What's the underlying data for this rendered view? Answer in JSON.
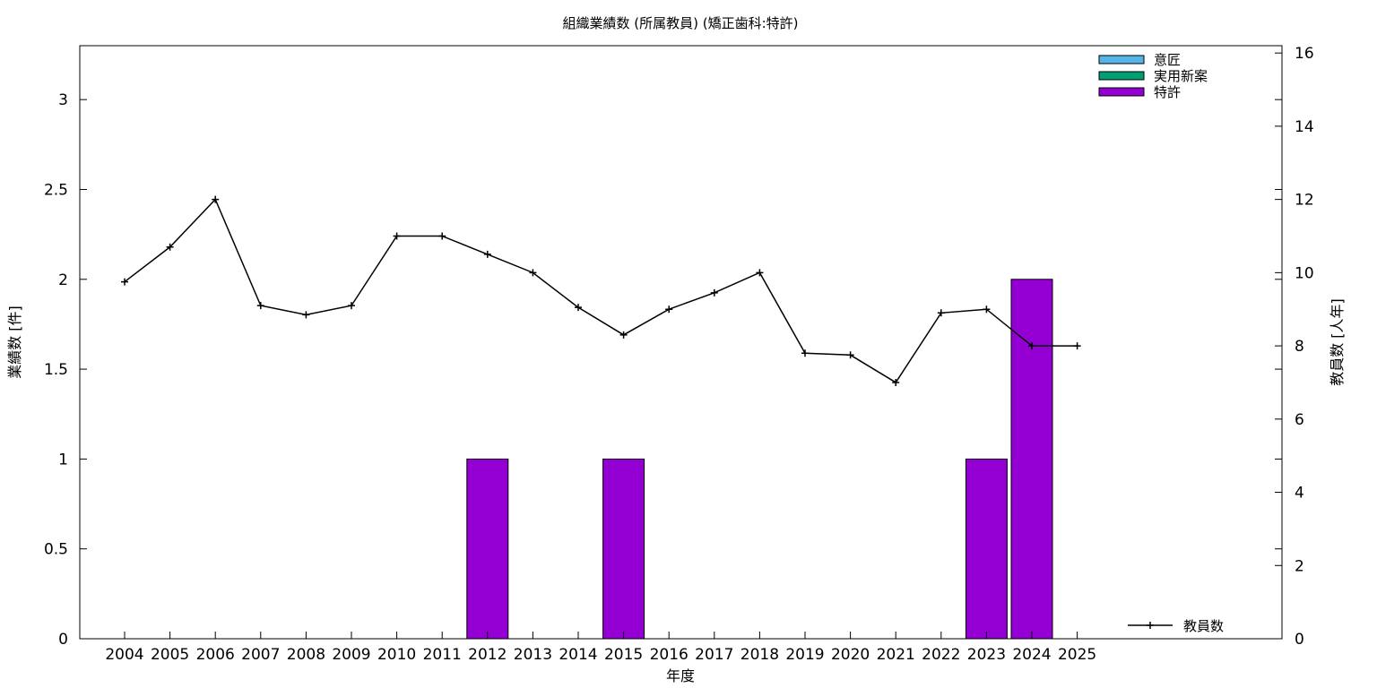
{
  "chart_data": {
    "type": "bar",
    "title": "組織業績数 (所属教員) (矯正歯科:特許)",
    "xlabel": "年度",
    "ylabel": "業績数 [件]",
    "y2label": "教員数 [人年]",
    "categories": [
      "2004",
      "2005",
      "2006",
      "2007",
      "2008",
      "2009",
      "2010",
      "2011",
      "2012",
      "2013",
      "2014",
      "2015",
      "2016",
      "2017",
      "2018",
      "2019",
      "2020",
      "2021",
      "2022",
      "2023",
      "2024",
      "2025"
    ],
    "ylim": [
      0,
      3.3
    ],
    "yticks": [
      "0",
      "0.5",
      "1",
      "1.5",
      "2",
      "2.5",
      "3"
    ],
    "y2lim": [
      0,
      16.2
    ],
    "y2ticks": [
      "0",
      "2",
      "4",
      "6",
      "8",
      "10",
      "12",
      "14",
      "16"
    ],
    "grid": false,
    "legend_position": "top-right",
    "series": [
      {
        "name": "意匠",
        "kind": "bar",
        "color": "#56b4e9",
        "values": [
          0,
          0,
          0,
          0,
          0,
          0,
          0,
          0,
          0,
          0,
          0,
          0,
          0,
          0,
          0,
          0,
          0,
          0,
          0,
          0,
          0,
          0
        ]
      },
      {
        "name": "実用新案",
        "kind": "bar",
        "color": "#009e73",
        "values": [
          0,
          0,
          0,
          0,
          0,
          0,
          0,
          0,
          0,
          0,
          0,
          0,
          0,
          0,
          0,
          0,
          0,
          0,
          0,
          0,
          0,
          0
        ]
      },
      {
        "name": "特許",
        "kind": "bar",
        "color": "#9400d3",
        "values": [
          0,
          0,
          0,
          0,
          0,
          0,
          0,
          0,
          1,
          0,
          0,
          1,
          0,
          0,
          0,
          0,
          0,
          0,
          0,
          1,
          2,
          0
        ]
      },
      {
        "name": "教員数",
        "kind": "line",
        "axis": "y2",
        "color": "#000000",
        "values": [
          9.75,
          10.7,
          12.0,
          9.1,
          8.85,
          9.1,
          11.0,
          11.0,
          10.5,
          10.0,
          9.05,
          8.3,
          9.0,
          9.45,
          10.0,
          7.8,
          7.75,
          7.0,
          8.9,
          9.0,
          8.0,
          8.0
        ]
      }
    ]
  }
}
